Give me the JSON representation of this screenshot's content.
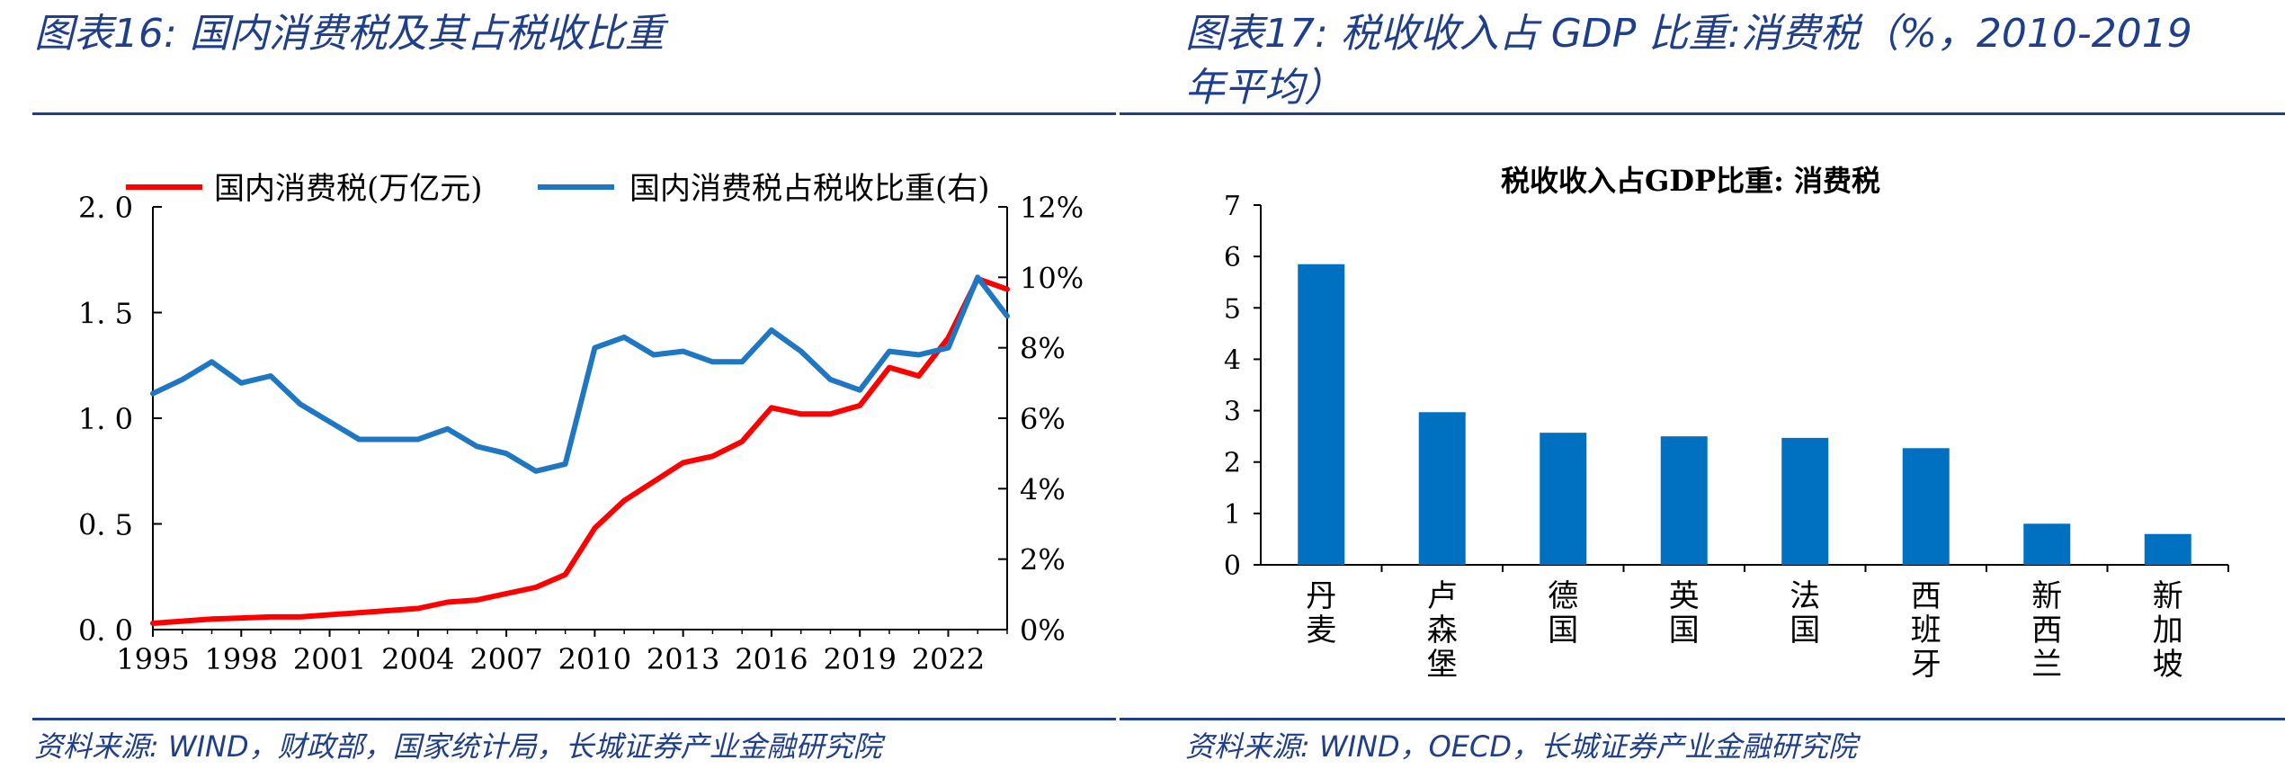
{
  "left_panel": {
    "heading": "图表16:  国内消费税及其占税收比重",
    "source": "资料来源:  WIND，财政部，国家统计局，长城证券产业金融研究院"
  },
  "right_panel": {
    "heading_line1": "图表17:  税收收入占  GDP  比重:消费税（%，2010-2019",
    "heading_line2": "年平均）",
    "source": "资料来源:  WIND，OECD，长城证券产业金融研究院"
  },
  "colors": {
    "heading": "#1f3f8a",
    "red_series": "#ff0000",
    "blue_series": "#1f77c4",
    "bar": "#0070c0"
  },
  "chart_data": [
    {
      "type": "line",
      "title": "",
      "x_ticks": [
        "1995",
        "1998",
        "2001",
        "2004",
        "2007",
        "2010",
        "2013",
        "2016",
        "2019",
        "2022"
      ],
      "x": [
        1995,
        1996,
        1997,
        1998,
        1999,
        2000,
        2001,
        2002,
        2003,
        2004,
        2005,
        2006,
        2007,
        2008,
        2009,
        2010,
        2011,
        2012,
        2013,
        2014,
        2015,
        2016,
        2017,
        2018,
        2019,
        2020,
        2021,
        2022,
        2023,
        2024
      ],
      "y_left_ticks": [
        "0. 0",
        "0. 5",
        "1. 0",
        "1. 5",
        "2. 0"
      ],
      "y_left_lim": [
        0,
        2.0
      ],
      "y_right_ticks": [
        "0%",
        "2%",
        "4%",
        "6%",
        "8%",
        "10%",
        "12%"
      ],
      "y_right_lim": [
        0,
        12
      ],
      "series": [
        {
          "name": "国内消费税(万亿元)",
          "axis": "left",
          "color": "#ff0000",
          "values": [
            0.03,
            0.04,
            0.05,
            0.055,
            0.06,
            0.06,
            0.07,
            0.08,
            0.09,
            0.1,
            0.13,
            0.14,
            0.17,
            0.2,
            0.26,
            0.48,
            0.61,
            0.7,
            0.79,
            0.82,
            0.89,
            1.05,
            1.02,
            1.02,
            1.06,
            1.24,
            1.2,
            1.38,
            1.66,
            1.61
          ]
        },
        {
          "name": "国内消费税占税收比重(右)",
          "axis": "right",
          "color": "#1f77c4",
          "values": [
            6.7,
            7.1,
            7.6,
            7.0,
            7.2,
            6.4,
            5.9,
            5.4,
            5.4,
            5.4,
            5.7,
            5.2,
            5.0,
            4.5,
            4.7,
            8.0,
            8.3,
            7.8,
            7.9,
            7.6,
            7.6,
            8.5,
            7.9,
            7.1,
            6.8,
            7.9,
            7.8,
            8.0,
            10.0,
            8.9
          ]
        }
      ],
      "legend": "top",
      "grid": false
    },
    {
      "type": "bar",
      "title": "税收收入占GDP比重: 消费税",
      "categories": [
        "丹麦",
        "卢森堡",
        "德国",
        "英国",
        "法国",
        "西班牙",
        "新西兰",
        "新加坡"
      ],
      "values": [
        5.85,
        2.97,
        2.57,
        2.5,
        2.47,
        2.27,
        0.8,
        0.6
      ],
      "ylim": [
        0,
        7
      ],
      "y_ticks": [
        "0",
        "1",
        "2",
        "3",
        "4",
        "5",
        "6",
        "7"
      ],
      "xlabel": "",
      "ylabel": "",
      "legend": "none",
      "grid": false
    }
  ]
}
